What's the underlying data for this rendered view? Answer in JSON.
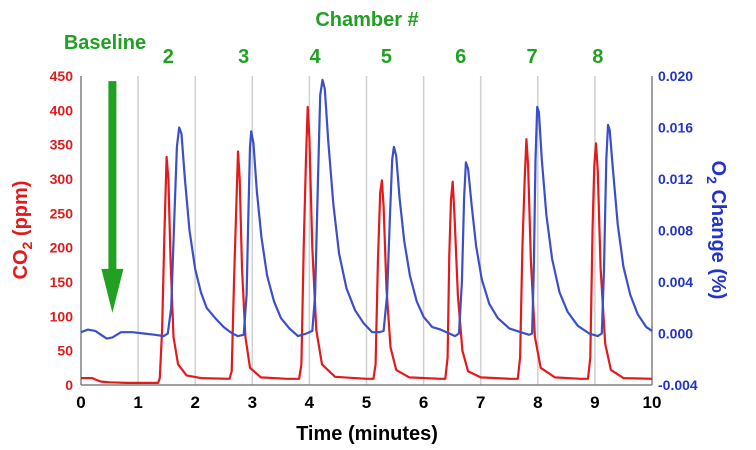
{
  "chart_data": {
    "type": "line",
    "title": "Chamber #",
    "xlabel": "Time (minutes)",
    "ylabel_left": {
      "prefix": "CO",
      "sub": "2",
      "suffix": " (ppm)"
    },
    "ylabel_right": {
      "prefix": "O",
      "sub": "2",
      "suffix": " Change (%)"
    },
    "xlim": [
      0,
      10
    ],
    "ylim_left": [
      0,
      450
    ],
    "ylim_right": [
      -0.004,
      0.02
    ],
    "x_ticks": [
      "0",
      "1",
      "2",
      "3",
      "4",
      "5",
      "6",
      "7",
      "8",
      "9",
      "10"
    ],
    "y_left_ticks": [
      "0",
      "50",
      "100",
      "150",
      "200",
      "250",
      "300",
      "350",
      "400",
      "450"
    ],
    "y_right_ticks": [
      "-0.004",
      "0.000",
      "0.004",
      "0.008",
      "0.012",
      "0.016",
      "0.020"
    ],
    "grid": {
      "vertical": true,
      "horizontal": false
    },
    "chambers": [
      {
        "label": "2",
        "x": 1.53
      },
      {
        "label": "3",
        "x": 2.85
      },
      {
        "label": "4",
        "x": 4.1
      },
      {
        "label": "5",
        "x": 5.35
      },
      {
        "label": "6",
        "x": 6.65
      },
      {
        "label": "7",
        "x": 7.9
      },
      {
        "label": "8",
        "x": 9.05
      }
    ],
    "baseline_annotation": {
      "text": "Baseline",
      "x": 0.55,
      "y_top": 0.0196,
      "y_bottom": 0.0016
    },
    "series": [
      {
        "axis": "left",
        "color": "#e31a1c",
        "points": [
          [
            0,
            10
          ],
          [
            0.2,
            10
          ],
          [
            0.25,
            8
          ],
          [
            0.35,
            5
          ],
          [
            0.5,
            4
          ],
          [
            0.8,
            3
          ],
          [
            1.1,
            3
          ],
          [
            1.35,
            3
          ],
          [
            1.38,
            10
          ],
          [
            1.42,
            80
          ],
          [
            1.46,
            220
          ],
          [
            1.5,
            332
          ],
          [
            1.53,
            300
          ],
          [
            1.57,
            180
          ],
          [
            1.62,
            70
          ],
          [
            1.7,
            30
          ],
          [
            1.85,
            14
          ],
          [
            2.1,
            10
          ],
          [
            2.6,
            9
          ],
          [
            2.64,
            20
          ],
          [
            2.68,
            150
          ],
          [
            2.72,
            260
          ],
          [
            2.75,
            340
          ],
          [
            2.78,
            300
          ],
          [
            2.82,
            170
          ],
          [
            2.88,
            70
          ],
          [
            2.96,
            25
          ],
          [
            3.15,
            11
          ],
          [
            3.6,
            9
          ],
          [
            3.82,
            9
          ],
          [
            3.86,
            30
          ],
          [
            3.9,
            200
          ],
          [
            3.94,
            330
          ],
          [
            3.97,
            405
          ],
          [
            4.0,
            360
          ],
          [
            4.05,
            200
          ],
          [
            4.12,
            80
          ],
          [
            4.22,
            30
          ],
          [
            4.45,
            12
          ],
          [
            5.0,
            9
          ],
          [
            5.12,
            9
          ],
          [
            5.16,
            30
          ],
          [
            5.2,
            180
          ],
          [
            5.24,
            280
          ],
          [
            5.27,
            298
          ],
          [
            5.3,
            260
          ],
          [
            5.35,
            140
          ],
          [
            5.42,
            55
          ],
          [
            5.52,
            22
          ],
          [
            5.75,
            11
          ],
          [
            6.3,
            9
          ],
          [
            6.38,
            9
          ],
          [
            6.42,
            40
          ],
          [
            6.45,
            190
          ],
          [
            6.48,
            270
          ],
          [
            6.51,
            296
          ],
          [
            6.54,
            250
          ],
          [
            6.6,
            130
          ],
          [
            6.68,
            50
          ],
          [
            6.78,
            20
          ],
          [
            7.0,
            11
          ],
          [
            7.5,
            9
          ],
          [
            7.65,
            9
          ],
          [
            7.69,
            40
          ],
          [
            7.73,
            200
          ],
          [
            7.77,
            300
          ],
          [
            7.8,
            358
          ],
          [
            7.83,
            320
          ],
          [
            7.88,
            180
          ],
          [
            7.95,
            70
          ],
          [
            8.05,
            25
          ],
          [
            8.3,
            11
          ],
          [
            8.75,
            9
          ],
          [
            8.88,
            9
          ],
          [
            8.92,
            40
          ],
          [
            8.96,
            230
          ],
          [
            8.99,
            320
          ],
          [
            9.02,
            352
          ],
          [
            9.05,
            310
          ],
          [
            9.1,
            170
          ],
          [
            9.18,
            60
          ],
          [
            9.28,
            22
          ],
          [
            9.5,
            10
          ],
          [
            10,
            9
          ]
        ]
      },
      {
        "axis": "right",
        "color": "#3a4fc8",
        "points": [
          [
            0,
            0.0001
          ],
          [
            0.12,
            0.0003
          ],
          [
            0.25,
            0.0002
          ],
          [
            0.35,
            -0.0001
          ],
          [
            0.45,
            -0.0004
          ],
          [
            0.55,
            -0.0003
          ],
          [
            0.7,
            0.0001
          ],
          [
            0.9,
            0.0001
          ],
          [
            1.1,
            0.0
          ],
          [
            1.3,
            -0.0001
          ],
          [
            1.45,
            -0.0002
          ],
          [
            1.52,
            0.0
          ],
          [
            1.58,
            0.002
          ],
          [
            1.63,
            0.0085
          ],
          [
            1.68,
            0.0145
          ],
          [
            1.72,
            0.016
          ],
          [
            1.76,
            0.0155
          ],
          [
            1.82,
            0.012
          ],
          [
            1.9,
            0.008
          ],
          [
            2.0,
            0.005
          ],
          [
            2.1,
            0.0032
          ],
          [
            2.2,
            0.002
          ],
          [
            2.35,
            0.0012
          ],
          [
            2.5,
            0.0005
          ],
          [
            2.65,
            0.0
          ],
          [
            2.75,
            -0.0002
          ],
          [
            2.85,
            -0.0001
          ],
          [
            2.9,
            0.003
          ],
          [
            2.93,
            0.009
          ],
          [
            2.96,
            0.0145
          ],
          [
            2.98,
            0.0157
          ],
          [
            3.02,
            0.0148
          ],
          [
            3.08,
            0.011
          ],
          [
            3.16,
            0.0075
          ],
          [
            3.26,
            0.0045
          ],
          [
            3.38,
            0.0025
          ],
          [
            3.5,
            0.0012
          ],
          [
            3.65,
            0.0004
          ],
          [
            3.8,
            -0.0002
          ],
          [
            3.95,
            0.0
          ],
          [
            4.05,
            0.0002
          ],
          [
            4.1,
            0.003
          ],
          [
            4.15,
            0.012
          ],
          [
            4.19,
            0.0185
          ],
          [
            4.23,
            0.0197
          ],
          [
            4.27,
            0.019
          ],
          [
            4.33,
            0.015
          ],
          [
            4.42,
            0.01
          ],
          [
            4.52,
            0.0062
          ],
          [
            4.65,
            0.0035
          ],
          [
            4.8,
            0.0018
          ],
          [
            4.95,
            0.0008
          ],
          [
            5.1,
            0.0001
          ],
          [
            5.22,
            0.0001
          ],
          [
            5.3,
            0.0002
          ],
          [
            5.36,
            0.003
          ],
          [
            5.41,
            0.009
          ],
          [
            5.45,
            0.0135
          ],
          [
            5.48,
            0.0145
          ],
          [
            5.52,
            0.0138
          ],
          [
            5.58,
            0.0105
          ],
          [
            5.66,
            0.0072
          ],
          [
            5.76,
            0.0045
          ],
          [
            5.88,
            0.0025
          ],
          [
            6.0,
            0.0013
          ],
          [
            6.15,
            0.0005
          ],
          [
            6.3,
            0.0003
          ],
          [
            6.45,
            0.0
          ],
          [
            6.55,
            -0.0002
          ],
          [
            6.62,
            0.0
          ],
          [
            6.67,
            0.004
          ],
          [
            6.71,
            0.0105
          ],
          [
            6.74,
            0.0133
          ],
          [
            6.78,
            0.0128
          ],
          [
            6.84,
            0.01
          ],
          [
            6.92,
            0.0068
          ],
          [
            7.02,
            0.0042
          ],
          [
            7.15,
            0.0023
          ],
          [
            7.3,
            0.0012
          ],
          [
            7.5,
            0.0004
          ],
          [
            7.7,
            0.0001
          ],
          [
            7.85,
            -0.0001
          ],
          [
            7.9,
            0.0
          ],
          [
            7.93,
            0.005
          ],
          [
            7.96,
            0.0135
          ],
          [
            7.99,
            0.0176
          ],
          [
            8.02,
            0.0172
          ],
          [
            8.07,
            0.0135
          ],
          [
            8.15,
            0.0092
          ],
          [
            8.25,
            0.0058
          ],
          [
            8.38,
            0.0032
          ],
          [
            8.52,
            0.0017
          ],
          [
            8.7,
            0.0006
          ],
          [
            8.9,
            0.0
          ],
          [
            9.05,
            -0.0002
          ],
          [
            9.12,
            0.0
          ],
          [
            9.16,
            0.005
          ],
          [
            9.2,
            0.0135
          ],
          [
            9.23,
            0.0162
          ],
          [
            9.26,
            0.0158
          ],
          [
            9.32,
            0.0125
          ],
          [
            9.4,
            0.0085
          ],
          [
            9.5,
            0.0052
          ],
          [
            9.62,
            0.003
          ],
          [
            9.75,
            0.0015
          ],
          [
            9.9,
            0.0005
          ],
          [
            10,
            0.0002
          ]
        ]
      }
    ]
  }
}
